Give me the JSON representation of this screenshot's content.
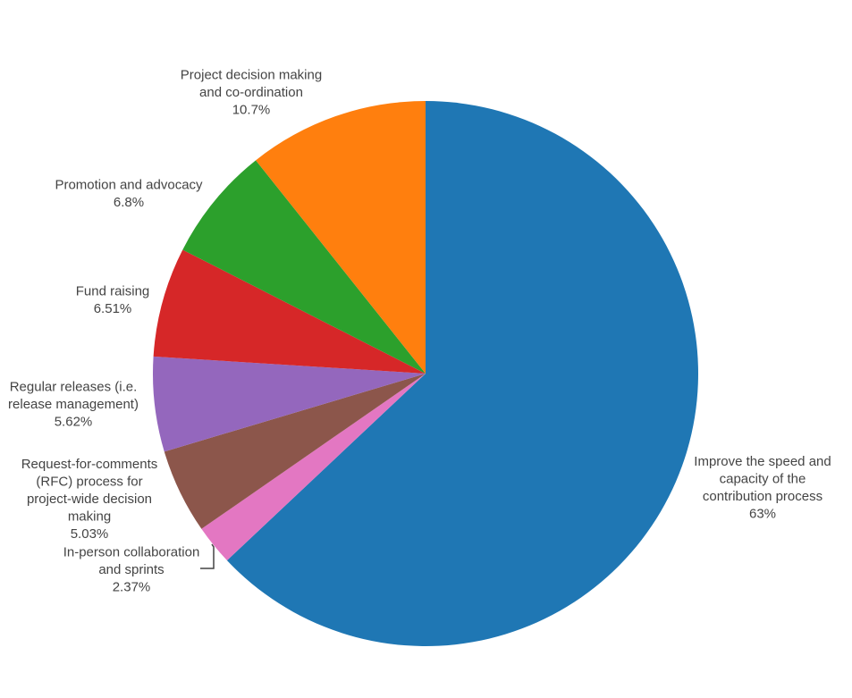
{
  "chart_data": {
    "type": "pie",
    "title": "",
    "start_angle_deg": 0,
    "direction": "clockwise",
    "slices": [
      {
        "label": "Improve the speed and capacity of the contribution process",
        "label_lines": [
          "Improve the speed and",
          "capacity of the",
          "contribution process"
        ],
        "value": 63,
        "percent_text": "63%",
        "color": "#1f77b4"
      },
      {
        "label": "In-person collaboration and sprints",
        "label_lines": [
          "In-person collaboration",
          "and sprints"
        ],
        "value": 2.37,
        "percent_text": "2.37%",
        "color": "#e377c2"
      },
      {
        "label": "Request-for-comments (RFC) process for project-wide decision making",
        "label_lines": [
          "Request-for-comments",
          "(RFC) process for",
          "project-wide decision",
          "making"
        ],
        "value": 5.03,
        "percent_text": "5.03%",
        "color": "#8c564b"
      },
      {
        "label": "Regular releases (i.e. release management)",
        "label_lines": [
          "Regular releases (i.e.",
          "release management)"
        ],
        "value": 5.62,
        "percent_text": "5.62%",
        "color": "#9467bd"
      },
      {
        "label": "Fund raising",
        "label_lines": [
          "Fund raising"
        ],
        "value": 6.51,
        "percent_text": "6.51%",
        "color": "#d62728"
      },
      {
        "label": "Promotion and advocacy",
        "label_lines": [
          "Promotion and advocacy"
        ],
        "value": 6.8,
        "percent_text": "6.8%",
        "color": "#2ca02c"
      },
      {
        "label": "Project decision making and co-ordination",
        "label_lines": [
          "Project decision making",
          "and co-ordination"
        ],
        "value": 10.7,
        "percent_text": "10.7%",
        "color": "#ff7f0e"
      }
    ]
  }
}
